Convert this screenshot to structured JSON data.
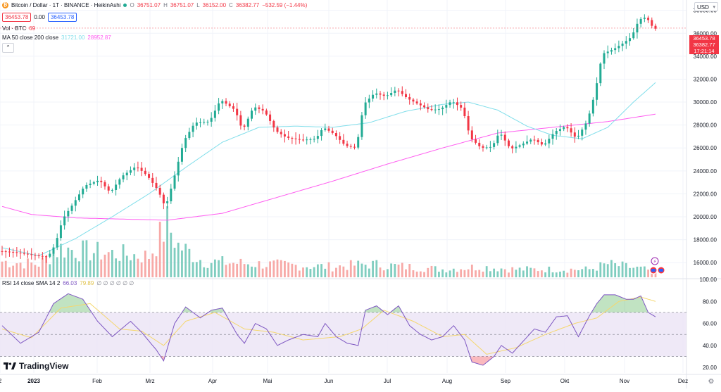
{
  "header": {
    "symbol_title": "Bitcoin / Dollar · 1T · BINANCE · HeikinAshi",
    "ohlc": {
      "open_label": "O",
      "open": "36751.07",
      "high_label": "H",
      "high": "36751.07",
      "low_label": "L",
      "low": "36152.00",
      "close_label": "C",
      "close": "36382.77",
      "change": "−532.59 (−1.44%)"
    },
    "bid": "36453.78",
    "spread": "0.00",
    "ask": "36453.78",
    "volume_label": "Vol · BTC",
    "volume_value": "69",
    "ma_label": "MA 50 close 200 close",
    "ma50_value": "31721.00",
    "ma200_value": "28952.87",
    "currency": "USD"
  },
  "price_tags": {
    "last": "36453.78",
    "close": "36382.77",
    "countdown": "17:21:14"
  },
  "rsi_legend": {
    "label": "RSI 14 close SMA 14 2",
    "rsi_value": "66.03",
    "sma_value": "79.89",
    "empty_values": "∅ ∅ ∅ ∅ ∅ ∅"
  },
  "brand": "TradingView",
  "colors": {
    "up": "#22ab94",
    "down": "#f23645",
    "vol_up": "#7fcdbf",
    "vol_down": "#f7a9a7",
    "ma50": "#80deea",
    "ma200": "#ff5cf0",
    "rsi": "#7e57c2",
    "rsi_sma": "#f5d76e",
    "rsi_band": "#ede7f6"
  },
  "chart_data": [
    {
      "type": "candlestick",
      "title": "Bitcoin / Dollar · 1T · BINANCE · HeikinAshi",
      "x_tick_labels": [
        "2",
        "2023",
        "Feb",
        "Mrz",
        "Apr",
        "Mai",
        "Jun",
        "Jul",
        "Aug",
        "Sep",
        "Okt",
        "Nov",
        "Dez"
      ],
      "y_tick_labels": [
        "16000.00",
        "18000.00",
        "20000.00",
        "22000.00",
        "24000.00",
        "26000.00",
        "28000.00",
        "30000.00",
        "32000.00",
        "34000.00",
        "36000.00",
        "38000.00"
      ],
      "ylim": [
        14600,
        38900
      ],
      "grid": true,
      "price_anchor_points": [
        {
          "t": 0,
          "y": 17000
        },
        {
          "t": 4,
          "y": 16900
        },
        {
          "t": 10,
          "y": 16600
        },
        {
          "t": 13,
          "y": 16500
        },
        {
          "t": 15,
          "y": 17600
        },
        {
          "t": 17,
          "y": 19800
        },
        {
          "t": 20,
          "y": 21200
        },
        {
          "t": 23,
          "y": 22700
        },
        {
          "t": 27,
          "y": 23200
        },
        {
          "t": 30,
          "y": 22100
        },
        {
          "t": 33,
          "y": 23500
        },
        {
          "t": 37,
          "y": 24400
        },
        {
          "t": 40,
          "y": 23600
        },
        {
          "t": 43,
          "y": 22300
        },
        {
          "t": 45,
          "y": 20800
        },
        {
          "t": 47,
          "y": 23000
        },
        {
          "t": 50,
          "y": 26600
        },
        {
          "t": 53,
          "y": 28200
        },
        {
          "t": 57,
          "y": 28300
        },
        {
          "t": 60,
          "y": 30200
        },
        {
          "t": 64,
          "y": 29300
        },
        {
          "t": 66,
          "y": 27500
        },
        {
          "t": 69,
          "y": 29600
        },
        {
          "t": 72,
          "y": 29200
        },
        {
          "t": 75,
          "y": 27500
        },
        {
          "t": 78,
          "y": 26900
        },
        {
          "t": 82,
          "y": 26700
        },
        {
          "t": 86,
          "y": 26800
        },
        {
          "t": 88,
          "y": 27800
        },
        {
          "t": 91,
          "y": 27200
        },
        {
          "t": 94,
          "y": 26200
        },
        {
          "t": 97,
          "y": 26000
        },
        {
          "t": 99,
          "y": 29800
        },
        {
          "t": 102,
          "y": 30800
        },
        {
          "t": 105,
          "y": 30500
        },
        {
          "t": 108,
          "y": 31100
        },
        {
          "t": 111,
          "y": 30300
        },
        {
          "t": 114,
          "y": 29800
        },
        {
          "t": 117,
          "y": 29300
        },
        {
          "t": 120,
          "y": 29400
        },
        {
          "t": 123,
          "y": 30100
        },
        {
          "t": 126,
          "y": 29400
        },
        {
          "t": 128,
          "y": 26900
        },
        {
          "t": 131,
          "y": 26000
        },
        {
          "t": 134,
          "y": 26100
        },
        {
          "t": 136,
          "y": 27400
        },
        {
          "t": 139,
          "y": 25900
        },
        {
          "t": 142,
          "y": 26300
        },
        {
          "t": 145,
          "y": 26800
        },
        {
          "t": 148,
          "y": 26200
        },
        {
          "t": 151,
          "y": 27400
        },
        {
          "t": 154,
          "y": 27900
        },
        {
          "t": 157,
          "y": 26800
        },
        {
          "t": 160,
          "y": 28400
        },
        {
          "t": 162,
          "y": 30800
        },
        {
          "t": 164,
          "y": 34200
        },
        {
          "t": 167,
          "y": 34600
        },
        {
          "t": 170,
          "y": 35200
        },
        {
          "t": 172,
          "y": 35700
        },
        {
          "t": 174,
          "y": 37200
        },
        {
          "t": 176,
          "y": 37400
        },
        {
          "t": 178,
          "y": 36400
        }
      ],
      "ma50_anchor_points": [
        {
          "t": 0,
          "y": 17300
        },
        {
          "t": 10,
          "y": 16600
        },
        {
          "t": 20,
          "y": 18100
        },
        {
          "t": 30,
          "y": 20000
        },
        {
          "t": 40,
          "y": 22000
        },
        {
          "t": 50,
          "y": 24300
        },
        {
          "t": 60,
          "y": 26500
        },
        {
          "t": 70,
          "y": 27800
        },
        {
          "t": 80,
          "y": 27900
        },
        {
          "t": 90,
          "y": 27800
        },
        {
          "t": 100,
          "y": 28200
        },
        {
          "t": 110,
          "y": 29200
        },
        {
          "t": 120,
          "y": 29800
        },
        {
          "t": 127,
          "y": 30000
        },
        {
          "t": 135,
          "y": 29300
        },
        {
          "t": 143,
          "y": 27900
        },
        {
          "t": 150,
          "y": 27100
        },
        {
          "t": 158,
          "y": 26800
        },
        {
          "t": 165,
          "y": 27800
        },
        {
          "t": 172,
          "y": 30000
        },
        {
          "t": 178,
          "y": 31700
        }
      ],
      "ma200_anchor_points": [
        {
          "t": 0,
          "y": 20900
        },
        {
          "t": 8,
          "y": 20200
        },
        {
          "t": 20,
          "y": 19900
        },
        {
          "t": 45,
          "y": 19700
        },
        {
          "t": 60,
          "y": 20300
        },
        {
          "t": 75,
          "y": 21700
        },
        {
          "t": 90,
          "y": 23100
        },
        {
          "t": 105,
          "y": 24600
        },
        {
          "t": 120,
          "y": 26000
        },
        {
          "t": 135,
          "y": 27300
        },
        {
          "t": 150,
          "y": 27800
        },
        {
          "t": 165,
          "y": 28300
        },
        {
          "t": 178,
          "y": 28950
        }
      ],
      "volume_anchor_points": [
        {
          "t": 0,
          "y": 30
        },
        {
          "t": 10,
          "y": 25
        },
        {
          "t": 16,
          "y": 55
        },
        {
          "t": 22,
          "y": 50
        },
        {
          "t": 30,
          "y": 45
        },
        {
          "t": 40,
          "y": 40
        },
        {
          "t": 45,
          "y": 100
        },
        {
          "t": 48,
          "y": 60
        },
        {
          "t": 55,
          "y": 30
        },
        {
          "t": 70,
          "y": 25
        },
        {
          "t": 90,
          "y": 20
        },
        {
          "t": 100,
          "y": 25
        },
        {
          "t": 120,
          "y": 15
        },
        {
          "t": 130,
          "y": 20
        },
        {
          "t": 140,
          "y": 15
        },
        {
          "t": 160,
          "y": 15
        },
        {
          "t": 165,
          "y": 25
        },
        {
          "t": 178,
          "y": 12
        }
      ]
    },
    {
      "type": "line",
      "title": "RSI 14 close SMA 14 2",
      "y_tick_labels": [
        "20.00",
        "40.00",
        "60.00",
        "80.00",
        "100.00"
      ],
      "ylim": [
        15,
        100
      ],
      "bands": [
        30,
        50,
        70
      ],
      "rsi_anchor_points": [
        {
          "t": 0,
          "y": 58
        },
        {
          "t": 5,
          "y": 42
        },
        {
          "t": 10,
          "y": 52
        },
        {
          "t": 14,
          "y": 78
        },
        {
          "t": 18,
          "y": 87
        },
        {
          "t": 22,
          "y": 82
        },
        {
          "t": 26,
          "y": 62
        },
        {
          "t": 30,
          "y": 48
        },
        {
          "t": 35,
          "y": 62
        },
        {
          "t": 38,
          "y": 52
        },
        {
          "t": 42,
          "y": 36
        },
        {
          "t": 44,
          "y": 26
        },
        {
          "t": 47,
          "y": 60
        },
        {
          "t": 50,
          "y": 75
        },
        {
          "t": 54,
          "y": 65
        },
        {
          "t": 57,
          "y": 72
        },
        {
          "t": 60,
          "y": 74
        },
        {
          "t": 64,
          "y": 50
        },
        {
          "t": 66,
          "y": 42
        },
        {
          "t": 69,
          "y": 60
        },
        {
          "t": 72,
          "y": 55
        },
        {
          "t": 75,
          "y": 40
        },
        {
          "t": 78,
          "y": 45
        },
        {
          "t": 82,
          "y": 50
        },
        {
          "t": 86,
          "y": 48
        },
        {
          "t": 88,
          "y": 60
        },
        {
          "t": 91,
          "y": 48
        },
        {
          "t": 94,
          "y": 42
        },
        {
          "t": 97,
          "y": 40
        },
        {
          "t": 99,
          "y": 72
        },
        {
          "t": 102,
          "y": 76
        },
        {
          "t": 105,
          "y": 68
        },
        {
          "t": 108,
          "y": 76
        },
        {
          "t": 111,
          "y": 58
        },
        {
          "t": 114,
          "y": 50
        },
        {
          "t": 117,
          "y": 45
        },
        {
          "t": 120,
          "y": 48
        },
        {
          "t": 123,
          "y": 58
        },
        {
          "t": 126,
          "y": 45
        },
        {
          "t": 128,
          "y": 25
        },
        {
          "t": 131,
          "y": 22
        },
        {
          "t": 134,
          "y": 30
        },
        {
          "t": 136,
          "y": 40
        },
        {
          "t": 139,
          "y": 33
        },
        {
          "t": 142,
          "y": 44
        },
        {
          "t": 145,
          "y": 55
        },
        {
          "t": 148,
          "y": 52
        },
        {
          "t": 151,
          "y": 66
        },
        {
          "t": 154,
          "y": 67
        },
        {
          "t": 157,
          "y": 48
        },
        {
          "t": 160,
          "y": 67
        },
        {
          "t": 162,
          "y": 78
        },
        {
          "t": 164,
          "y": 86
        },
        {
          "t": 167,
          "y": 86
        },
        {
          "t": 170,
          "y": 82
        },
        {
          "t": 172,
          "y": 82
        },
        {
          "t": 174,
          "y": 85
        },
        {
          "t": 176,
          "y": 70
        },
        {
          "t": 178,
          "y": 66
        }
      ],
      "sma_anchor_points": [
        {
          "t": 0,
          "y": 55
        },
        {
          "t": 8,
          "y": 47
        },
        {
          "t": 16,
          "y": 74
        },
        {
          "t": 24,
          "y": 78
        },
        {
          "t": 32,
          "y": 55
        },
        {
          "t": 38,
          "y": 53
        },
        {
          "t": 44,
          "y": 40
        },
        {
          "t": 50,
          "y": 62
        },
        {
          "t": 58,
          "y": 70
        },
        {
          "t": 66,
          "y": 55
        },
        {
          "t": 74,
          "y": 52
        },
        {
          "t": 82,
          "y": 45
        },
        {
          "t": 92,
          "y": 48
        },
        {
          "t": 98,
          "y": 55
        },
        {
          "t": 104,
          "y": 72
        },
        {
          "t": 112,
          "y": 62
        },
        {
          "t": 120,
          "y": 48
        },
        {
          "t": 126,
          "y": 50
        },
        {
          "t": 132,
          "y": 32
        },
        {
          "t": 140,
          "y": 38
        },
        {
          "t": 148,
          "y": 50
        },
        {
          "t": 156,
          "y": 60
        },
        {
          "t": 162,
          "y": 65
        },
        {
          "t": 168,
          "y": 80
        },
        {
          "t": 174,
          "y": 84
        },
        {
          "t": 178,
          "y": 80
        }
      ]
    }
  ]
}
